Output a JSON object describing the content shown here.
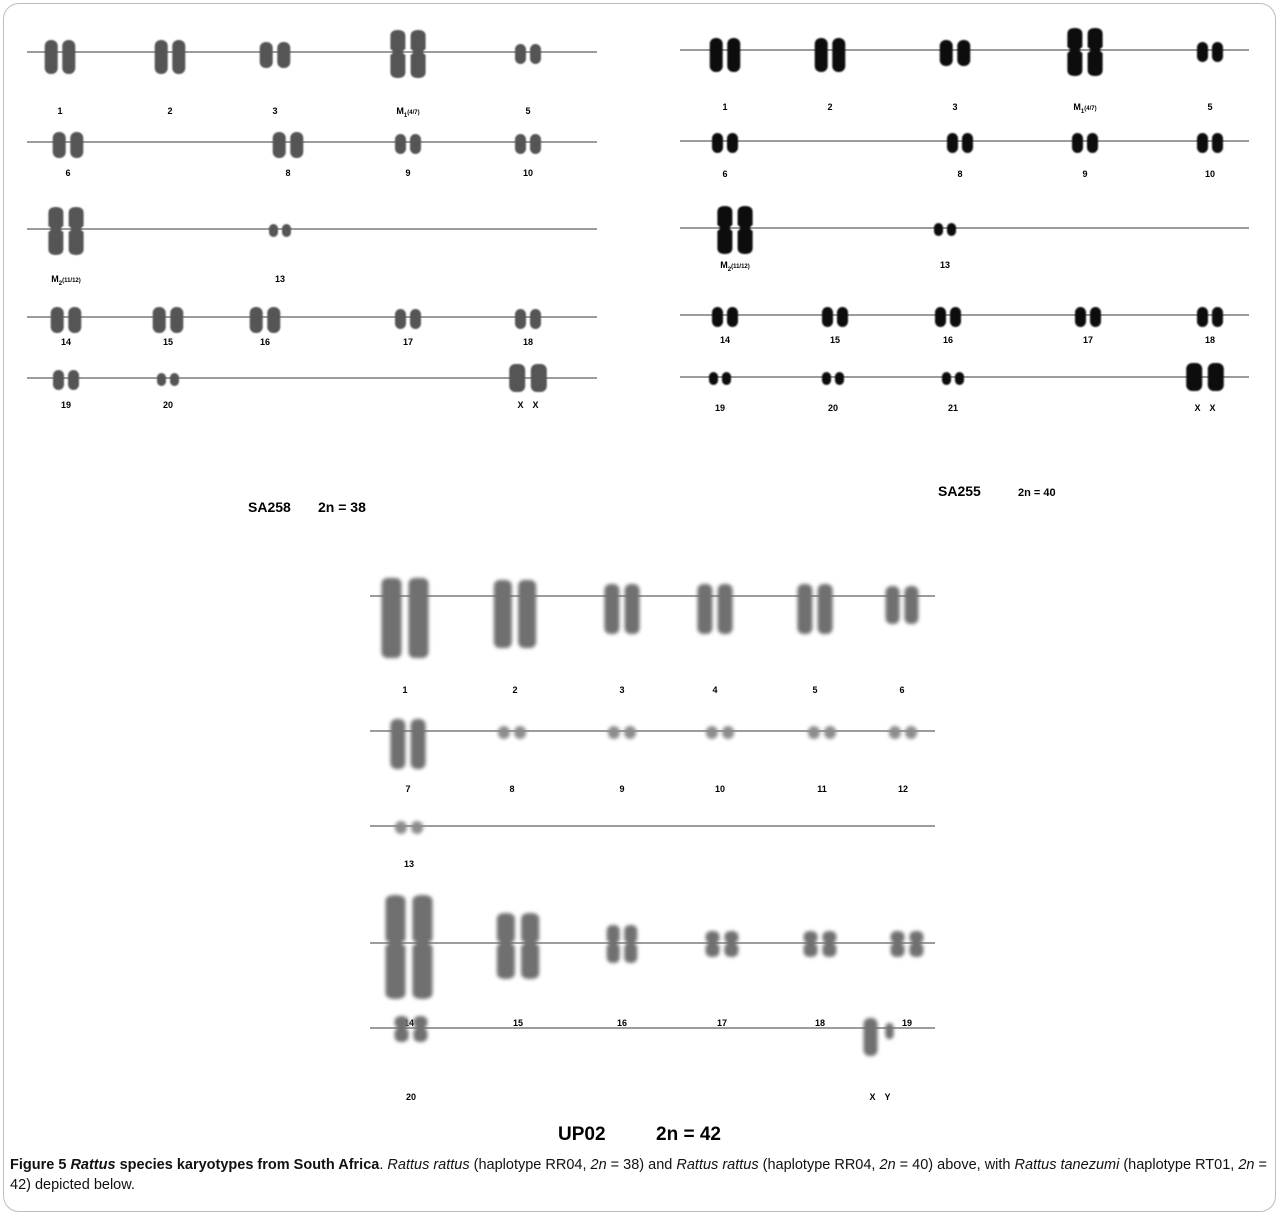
{
  "panels": [
    {
      "id": "sa258",
      "name": "SA258",
      "count": "2n = 38",
      "rows": [
        {
          "pairs": [
            {
              "label": "1",
              "shape": "submeta",
              "size": "large"
            },
            {
              "label": "2",
              "shape": "submeta",
              "size": "large"
            },
            {
              "label": "3",
              "shape": "submeta",
              "size": "medium"
            },
            {
              "label": "M1(4/7)",
              "shape": "meta",
              "size": "xlarge"
            },
            {
              "label": "5",
              "shape": "submeta",
              "size": "small"
            }
          ]
        },
        {
          "pairs": [
            {
              "label": "6",
              "shape": "submeta",
              "size": "medium"
            },
            {
              "label": "8",
              "shape": "submeta",
              "size": "medium"
            },
            {
              "label": "9",
              "shape": "submeta",
              "size": "small"
            },
            {
              "label": "10",
              "shape": "submeta",
              "size": "small"
            }
          ]
        },
        {
          "pairs": [
            {
              "label": "M2(11/12)",
              "shape": "meta",
              "size": "xlarge"
            },
            {
              "label": "13",
              "shape": "dot",
              "size": "tiny"
            }
          ]
        },
        {
          "pairs": [
            {
              "label": "14",
              "shape": "meta",
              "size": "medium"
            },
            {
              "label": "15",
              "shape": "meta",
              "size": "medium"
            },
            {
              "label": "16",
              "shape": "meta",
              "size": "medium"
            },
            {
              "label": "17",
              "shape": "meta",
              "size": "small"
            },
            {
              "label": "18",
              "shape": "meta",
              "size": "small"
            }
          ]
        },
        {
          "pairs": [
            {
              "label": "19",
              "shape": "meta",
              "size": "small"
            },
            {
              "label": "20",
              "shape": "meta",
              "size": "tiny"
            },
            {
              "label": "X X",
              "shape": "acro",
              "size": "medium"
            }
          ]
        }
      ]
    },
    {
      "id": "sa255",
      "name": "SA255",
      "count": "2n = 40",
      "rows": [
        {
          "pairs": [
            {
              "label": "1",
              "shape": "submeta",
              "size": "large"
            },
            {
              "label": "2",
              "shape": "submeta",
              "size": "large"
            },
            {
              "label": "3",
              "shape": "submeta",
              "size": "medium"
            },
            {
              "label": "M1(4/7)",
              "shape": "meta",
              "size": "xlarge"
            },
            {
              "label": "5",
              "shape": "submeta",
              "size": "small"
            }
          ]
        },
        {
          "pairs": [
            {
              "label": "6",
              "shape": "submeta",
              "size": "small"
            },
            {
              "label": "8",
              "shape": "submeta",
              "size": "small"
            },
            {
              "label": "9",
              "shape": "submeta",
              "size": "small"
            },
            {
              "label": "10",
              "shape": "submeta",
              "size": "small"
            }
          ]
        },
        {
          "pairs": [
            {
              "label": "M2(11/12)",
              "shape": "meta",
              "size": "xlarge"
            },
            {
              "label": "13",
              "shape": "submeta",
              "size": "tiny"
            }
          ]
        },
        {
          "pairs": [
            {
              "label": "14",
              "shape": "meta",
              "size": "small"
            },
            {
              "label": "15",
              "shape": "meta",
              "size": "small"
            },
            {
              "label": "16",
              "shape": "meta",
              "size": "small"
            },
            {
              "label": "17",
              "shape": "meta",
              "size": "small"
            },
            {
              "label": "18",
              "shape": "meta",
              "size": "small"
            }
          ]
        },
        {
          "pairs": [
            {
              "label": "19",
              "shape": "meta",
              "size": "tiny"
            },
            {
              "label": "20",
              "shape": "meta",
              "size": "tiny"
            },
            {
              "label": "21",
              "shape": "meta",
              "size": "tiny"
            },
            {
              "label": "X X",
              "shape": "acro",
              "size": "medium"
            }
          ]
        }
      ]
    },
    {
      "id": "up02",
      "name": "UP02",
      "count": "2n = 42",
      "rows": [
        {
          "pairs": [
            {
              "label": "1",
              "shape": "acro",
              "size": "xlarge"
            },
            {
              "label": "2",
              "shape": "acro",
              "size": "large"
            },
            {
              "label": "3",
              "shape": "acro",
              "size": "medium"
            },
            {
              "label": "4",
              "shape": "acro",
              "size": "medium"
            },
            {
              "label": "5",
              "shape": "acro",
              "size": "medium"
            },
            {
              "label": "6",
              "shape": "acro",
              "size": "small"
            }
          ]
        },
        {
          "pairs": [
            {
              "label": "7",
              "shape": "acro",
              "size": "medium"
            },
            {
              "label": "8",
              "shape": "acro",
              "size": "tiny"
            },
            {
              "label": "9",
              "shape": "acro",
              "size": "tiny"
            },
            {
              "label": "10",
              "shape": "acro",
              "size": "tiny"
            },
            {
              "label": "11",
              "shape": "acro",
              "size": "tiny"
            },
            {
              "label": "12",
              "shape": "acro",
              "size": "tiny"
            }
          ]
        },
        {
          "pairs": [
            {
              "label": "13",
              "shape": "acro",
              "size": "tiny"
            }
          ]
        },
        {
          "pairs": [
            {
              "label": "14",
              "shape": "meta",
              "size": "xlarge"
            },
            {
              "label": "15",
              "shape": "meta",
              "size": "large"
            },
            {
              "label": "16",
              "shape": "meta",
              "size": "medium"
            },
            {
              "label": "17",
              "shape": "meta",
              "size": "small"
            },
            {
              "label": "18",
              "shape": "meta",
              "size": "small"
            },
            {
              "label": "19",
              "shape": "meta",
              "size": "small"
            }
          ]
        },
        {
          "pairs": [
            {
              "label": "20",
              "shape": "meta",
              "size": "small"
            },
            {
              "label": "X Y",
              "shape": "acro",
              "size": "small"
            }
          ]
        }
      ]
    }
  ],
  "caption": {
    "figure_label": "Figure 5",
    "title_italic": "Rattus",
    "title_rest": " species karyotypes from South Africa",
    "segments": [
      {
        "t": ". ",
        "i": false
      },
      {
        "t": "Rattus rattus",
        "i": true
      },
      {
        "t": " (haplotype RR04, ",
        "i": false
      },
      {
        "t": "2n",
        "i": true
      },
      {
        "t": " = 38) and ",
        "i": false
      },
      {
        "t": "Rattus rattus",
        "i": true
      },
      {
        "t": " (haplotype RR04, ",
        "i": false
      },
      {
        "t": "2n",
        "i": true
      },
      {
        "t": " = 40) above, with ",
        "i": false
      },
      {
        "t": "Rattus tanezumi",
        "i": true
      },
      {
        "t": " (haplotype RT01, ",
        "i": false
      },
      {
        "t": "2n",
        "i": true
      },
      {
        "t": " = 42) depicted below.",
        "i": false
      }
    ]
  }
}
